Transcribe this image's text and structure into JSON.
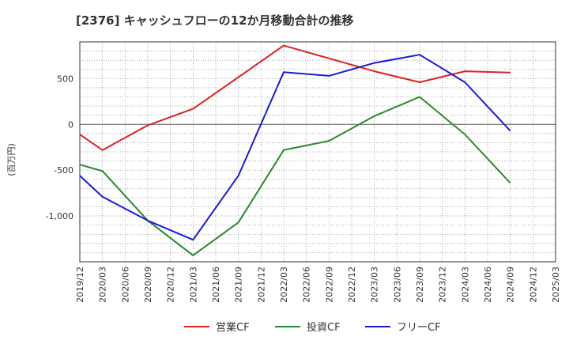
{
  "chart_data": {
    "type": "line",
    "title": "[2376]  キャッシュフローの12か月移動合計の推移",
    "ylabel": "(百万円)",
    "xlabel": "",
    "ylim": [
      -1500,
      900
    ],
    "yticks": [
      -1000,
      -500,
      0,
      500
    ],
    "ytick_labels": [
      "-1,000",
      "-500",
      "0",
      "500"
    ],
    "categories": [
      "2019/12",
      "2020/03",
      "2020/06",
      "2020/09",
      "2020/12",
      "2021/03",
      "2021/06",
      "2021/09",
      "2021/12",
      "2022/03",
      "2022/06",
      "2022/09",
      "2022/12",
      "2023/03",
      "2023/06",
      "2023/09",
      "2023/12",
      "2024/03",
      "2024/06",
      "2024/09",
      "2024/12",
      "2025/03"
    ],
    "series": [
      {
        "name": "営業CF",
        "color": "#dd2222",
        "values": [
          -110,
          -280,
          null,
          -10,
          null,
          170,
          null,
          null,
          null,
          860,
          null,
          null,
          null,
          580,
          null,
          460,
          null,
          580,
          null,
          565,
          null,
          null
        ]
      },
      {
        "name": "投資CF",
        "color": "#2a8a2a",
        "values": [
          -440,
          -510,
          null,
          -1050,
          null,
          -1430,
          null,
          -1070,
          null,
          -280,
          null,
          -180,
          null,
          90,
          null,
          300,
          null,
          -110,
          null,
          -640,
          null,
          null
        ]
      },
      {
        "name": "フリーCF",
        "color": "#1a1adb",
        "values": [
          -560,
          -790,
          null,
          -1050,
          null,
          -1260,
          null,
          -560,
          null,
          570,
          null,
          530,
          null,
          670,
          null,
          760,
          null,
          460,
          null,
          -70,
          null,
          null
        ]
      }
    ],
    "legend_position": "bottom",
    "grid": true
  }
}
